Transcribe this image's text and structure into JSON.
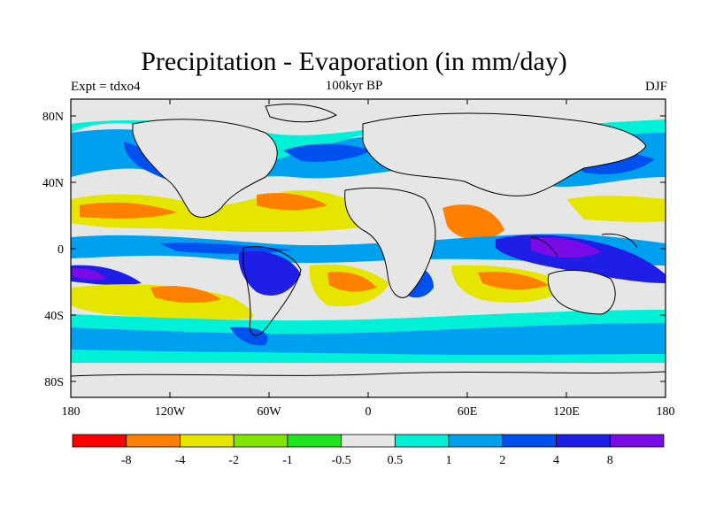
{
  "title": "Precipitation - Evaporation (in mm/day)",
  "left_label": "Expt = tdxo4",
  "center_label": "100kyr BP",
  "right_label": "DJF",
  "chart_data": {
    "type": "heatmap",
    "title": "Precipitation - Evaporation (in mm/day)",
    "x_ticks": [
      "180",
      "120W",
      "60W",
      "0",
      "60E",
      "120E",
      "180"
    ],
    "y_ticks": [
      "80N",
      "40N",
      "0",
      "40S",
      "80S"
    ],
    "colorbar": {
      "levels": [
        "-8",
        "-4",
        "-2",
        "-1",
        "-0.5",
        "0.5",
        "1",
        "2",
        "4",
        "8"
      ],
      "colors": [
        "#ff0000",
        "#ff7f00",
        "#e5e500",
        "#80e500",
        "#1ee51e",
        "#e6e6e6",
        "#00f0d8",
        "#00a0f0",
        "#0050f0",
        "#1e1ee6",
        "#7a0ae6"
      ]
    }
  }
}
